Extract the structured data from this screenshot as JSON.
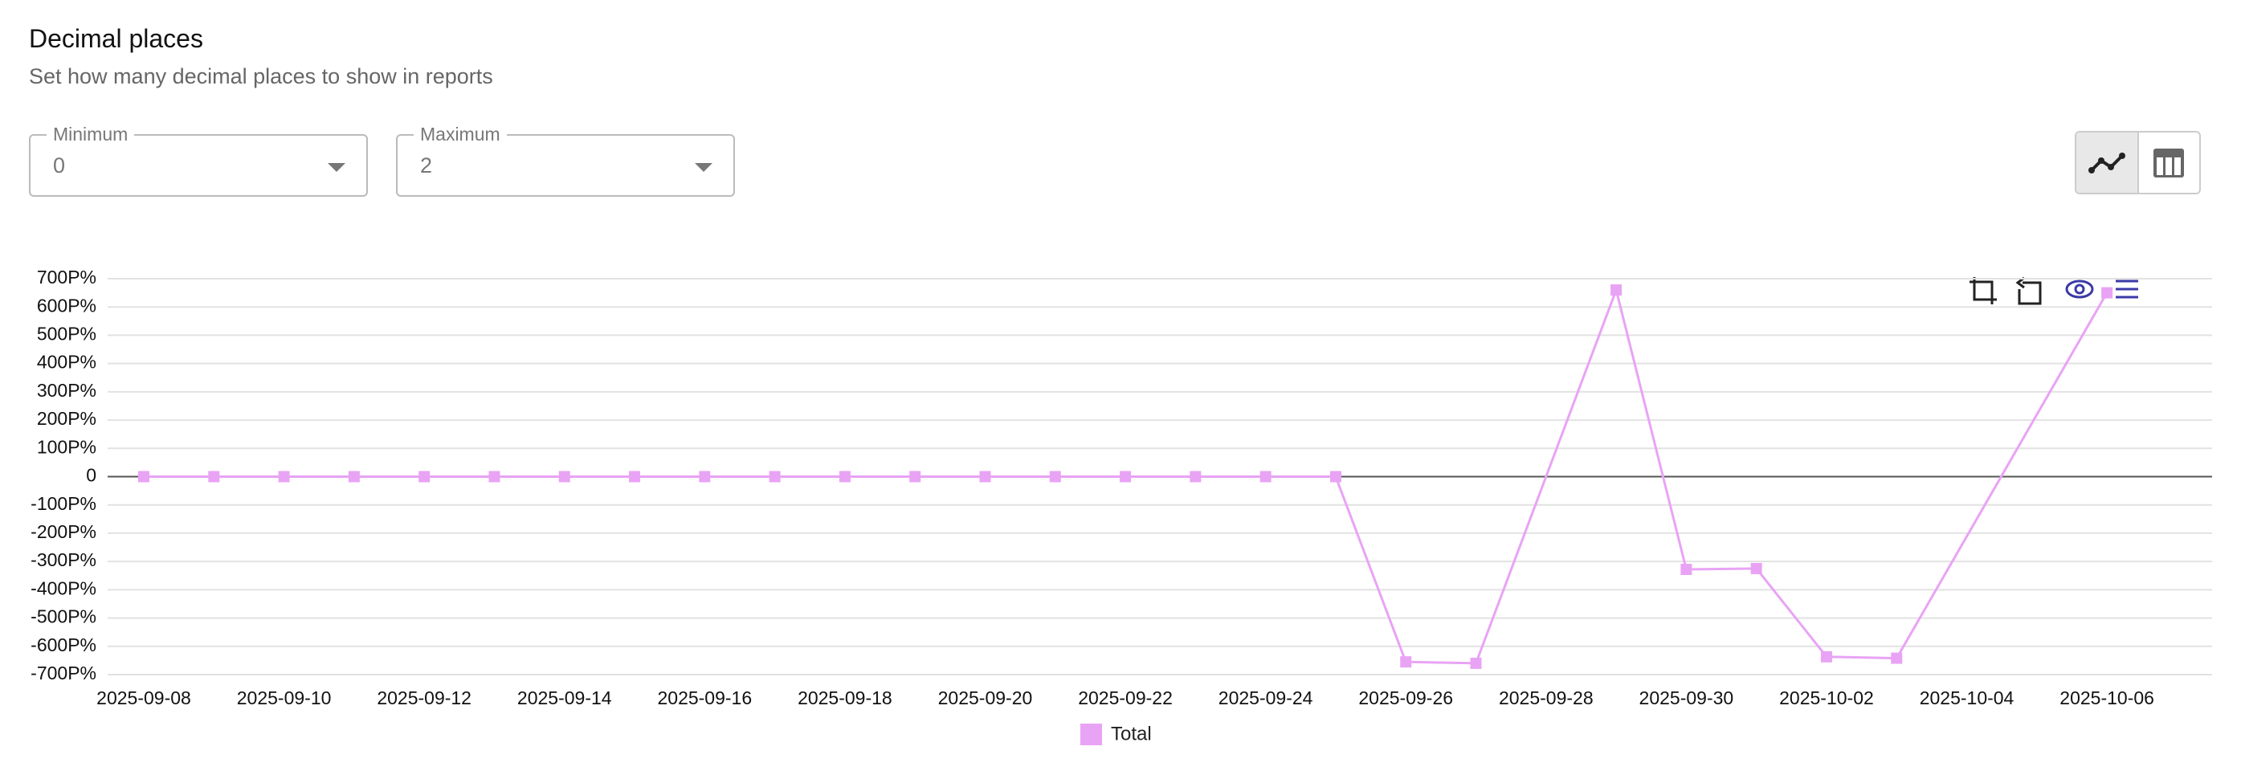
{
  "header": {
    "title": "Decimal places",
    "subtitle": "Set how many decimal places to show in reports"
  },
  "controls": {
    "minimum": {
      "label": "Minimum",
      "value": "0"
    },
    "maximum": {
      "label": "Maximum",
      "value": "2"
    }
  },
  "chart_data": {
    "type": "line",
    "x": [
      "2025-09-08",
      "2025-09-09",
      "2025-09-10",
      "2025-09-11",
      "2025-09-12",
      "2025-09-13",
      "2025-09-14",
      "2025-09-15",
      "2025-09-16",
      "2025-09-17",
      "2025-09-18",
      "2025-09-19",
      "2025-09-20",
      "2025-09-21",
      "2025-09-22",
      "2025-09-23",
      "2025-09-24",
      "2025-09-25",
      "2025-09-26",
      "2025-09-27",
      "2025-09-29",
      "2025-09-30",
      "2025-10-01",
      "2025-10-02",
      "2025-10-03",
      "2025-10-06"
    ],
    "series": [
      {
        "name": "Total",
        "color": "#e9a3f5",
        "values": [
          0,
          0,
          0,
          0,
          0,
          0,
          0,
          0,
          0,
          0,
          0,
          0,
          0,
          0,
          0,
          0,
          0,
          0,
          -655,
          -660,
          660,
          -328,
          -325,
          -637,
          -642,
          650
        ]
      }
    ],
    "xticks": [
      "2025-09-08",
      "2025-09-10",
      "2025-09-12",
      "2025-09-14",
      "2025-09-16",
      "2025-09-18",
      "2025-09-20",
      "2025-09-22",
      "2025-09-24",
      "2025-09-26",
      "2025-09-28",
      "2025-09-30",
      "2025-10-02",
      "2025-10-04",
      "2025-10-06"
    ],
    "ylim": [
      -700,
      700
    ],
    "yticks": [
      {
        "value": -700,
        "label": "-700P%"
      },
      {
        "value": -600,
        "label": "-600P%"
      },
      {
        "value": -500,
        "label": "-500P%"
      },
      {
        "value": -400,
        "label": "-400P%"
      },
      {
        "value": -300,
        "label": "-300P%"
      },
      {
        "value": -200,
        "label": "-200P%"
      },
      {
        "value": -100,
        "label": "-100P%"
      },
      0,
      {
        "value": 100,
        "label": "100P%"
      },
      {
        "value": 200,
        "label": "200P%"
      },
      {
        "value": 300,
        "label": "300P%"
      },
      {
        "value": 400,
        "label": "400P%"
      },
      {
        "value": 500,
        "label": "500P%"
      },
      {
        "value": 600,
        "label": "600P%"
      },
      {
        "value": 700,
        "label": "700P%"
      }
    ],
    "grid": true
  }
}
